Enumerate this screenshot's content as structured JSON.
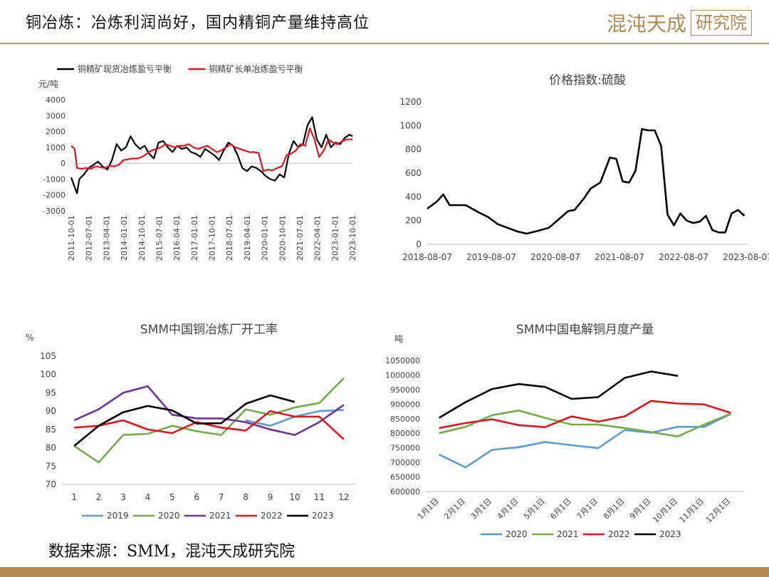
{
  "header": {
    "title": "铜冶炼：冶炼利润尚好，国内精铜产量维持高位",
    "logo_text": "混沌天成",
    "logo_box": "研究院"
  },
  "footer": {
    "source": "数据来源：SMM，混沌天成研究院"
  },
  "colors": {
    "gold": "#b08a52"
  },
  "chart_data": [
    {
      "type": "line",
      "title": "",
      "ylabel": "元/吨",
      "ylim": [
        -3000,
        4000
      ],
      "yticks": [
        "4000",
        "3000",
        "2000",
        "1000",
        "0",
        "-1000",
        "-2000",
        "-3000"
      ],
      "x_range": [
        2011.75,
        2023.83
      ],
      "xtick_labels": [
        "2011-10-01",
        "2012-07-01",
        "2013-04-01",
        "2014-01-01",
        "2014-10-01",
        "2015-07-01",
        "2016-04-01",
        "2017-01-01",
        "2017-10-01",
        "2018-07-01",
        "2019-04-01",
        "2020-01-01",
        "2020-10-01",
        "2021-07-01",
        "2022-04-01",
        "2023-01-01",
        "2023-10-01"
      ],
      "series": [
        {
          "name": "铜精矿现货冶炼盈亏平衡",
          "color": "#000000",
          "x": [
            2011.75,
            2011.9,
            2012.0,
            2012.1,
            2012.3,
            2012.5,
            2012.7,
            2012.9,
            2013.1,
            2013.3,
            2013.5,
            2013.7,
            2013.9,
            2014.1,
            2014.3,
            2014.5,
            2014.7,
            2014.9,
            2015.1,
            2015.3,
            2015.5,
            2015.7,
            2015.9,
            2016.1,
            2016.3,
            2016.5,
            2016.7,
            2016.9,
            2017.1,
            2017.3,
            2017.5,
            2017.7,
            2017.9,
            2018.1,
            2018.3,
            2018.5,
            2018.7,
            2018.9,
            2019.1,
            2019.3,
            2019.5,
            2019.7,
            2019.9,
            2020.1,
            2020.3,
            2020.5,
            2020.7,
            2020.9,
            2021.1,
            2021.3,
            2021.5,
            2021.7,
            2021.9,
            2022.1,
            2022.3,
            2022.5,
            2022.7,
            2022.9,
            2023.1,
            2023.3,
            2023.5,
            2023.7,
            2023.83
          ],
          "y": [
            -900,
            -1500,
            -1900,
            -1000,
            -700,
            -300,
            -100,
            100,
            -200,
            -400,
            200,
            1200,
            800,
            1000,
            1700,
            1200,
            900,
            1100,
            600,
            300,
            1300,
            1400,
            1000,
            700,
            1100,
            900,
            1000,
            700,
            600,
            400,
            900,
            700,
            500,
            200,
            800,
            1300,
            1100,
            500,
            -300,
            -500,
            -200,
            -300,
            -500,
            -800,
            -1000,
            -1100,
            -700,
            -900,
            600,
            1400,
            1000,
            1200,
            2400,
            2900,
            1500,
            1000,
            1800,
            1000,
            1300,
            1200,
            1600,
            1800,
            1700
          ]
        },
        {
          "name": "铜精矿长单冶炼盈亏平衡",
          "color": "#e0141d",
          "x": [
            2011.75,
            2011.9,
            2012.0,
            2012.2,
            2012.4,
            2012.6,
            2012.8,
            2013.0,
            2013.2,
            2013.4,
            2013.6,
            2013.8,
            2014.0,
            2014.2,
            2014.4,
            2014.6,
            2014.8,
            2015.0,
            2015.2,
            2015.4,
            2015.6,
            2015.8,
            2016.0,
            2016.2,
            2016.4,
            2016.6,
            2016.8,
            2017.0,
            2017.2,
            2017.4,
            2017.6,
            2017.8,
            2018.0,
            2018.2,
            2018.4,
            2018.6,
            2018.8,
            2019.0,
            2019.2,
            2019.4,
            2019.6,
            2019.8,
            2020.0,
            2020.2,
            2020.4,
            2020.6,
            2020.8,
            2021.0,
            2021.2,
            2021.4,
            2021.6,
            2021.8,
            2022.0,
            2022.2,
            2022.4,
            2022.6,
            2022.8,
            2023.0,
            2023.2,
            2023.4,
            2023.6,
            2023.83
          ],
          "y": [
            1100,
            900,
            -300,
            -350,
            -300,
            -350,
            -200,
            -250,
            -300,
            -150,
            -200,
            -100,
            200,
            250,
            300,
            300,
            400,
            600,
            800,
            900,
            1000,
            1200,
            1100,
            1000,
            1100,
            1100,
            1200,
            1000,
            900,
            1000,
            1100,
            900,
            700,
            800,
            1000,
            1200,
            1000,
            900,
            800,
            700,
            700,
            650,
            -500,
            -400,
            -450,
            -300,
            -200,
            500,
            600,
            800,
            1200,
            1100,
            2200,
            1500,
            400,
            800,
            1500,
            1300,
            1200,
            1400,
            1500,
            1500
          ]
        }
      ]
    },
    {
      "type": "line",
      "title": "价格指数:硫酸",
      "ylim": [
        0,
        1200
      ],
      "yticks": [
        "1200",
        "1000",
        "800",
        "600",
        "400",
        "200",
        "0"
      ],
      "x_range": [
        2018.6,
        2023.6
      ],
      "xtick_labels": [
        "2018-08-07",
        "2019-08-07",
        "2020-08-07",
        "2021-08-07",
        "2022-08-07",
        "2023-08-07"
      ],
      "series": [
        {
          "name": "",
          "color": "#000000",
          "x": [
            2018.6,
            2018.75,
            2018.85,
            2018.95,
            2019.05,
            2019.2,
            2019.4,
            2019.55,
            2019.7,
            2019.85,
            2020.0,
            2020.15,
            2020.3,
            2020.5,
            2020.65,
            2020.8,
            2020.9,
            2021.05,
            2021.15,
            2021.3,
            2021.45,
            2021.55,
            2021.65,
            2021.75,
            2021.85,
            2021.95,
            2022.05,
            2022.15,
            2022.25,
            2022.35,
            2022.45,
            2022.55,
            2022.6,
            2022.65,
            2022.75,
            2022.85,
            2022.95,
            2023.05,
            2023.15,
            2023.25,
            2023.35,
            2023.45,
            2023.55
          ],
          "y": [
            300,
            360,
            420,
            330,
            330,
            330,
            270,
            230,
            170,
            140,
            110,
            90,
            110,
            140,
            210,
            280,
            290,
            390,
            470,
            520,
            730,
            720,
            530,
            520,
            620,
            970,
            960,
            960,
            830,
            250,
            160,
            260,
            230,
            200,
            180,
            190,
            240,
            120,
            100,
            100,
            260,
            290,
            240
          ]
        }
      ]
    },
    {
      "type": "line",
      "title": "SMM中国铜冶炼厂开工率",
      "ylabel": "%",
      "ylim": [
        70,
        105
      ],
      "yticks": [
        "105",
        "100",
        "95",
        "90",
        "85",
        "80",
        "75",
        "70"
      ],
      "categories": [
        "1",
        "2",
        "3",
        "4",
        "5",
        "6",
        "7",
        "8",
        "9",
        "10",
        "11",
        "12"
      ],
      "series": [
        {
          "name": "2019",
          "color": "#5b9bd5",
          "values": [
            null,
            null,
            null,
            null,
            null,
            null,
            null,
            87.5,
            86.0,
            88.5,
            90.0,
            90.3
          ]
        },
        {
          "name": "2020",
          "color": "#70ad47",
          "values": [
            80.5,
            76.0,
            83.5,
            83.8,
            86.0,
            84.5,
            83.5,
            90.5,
            89.0,
            91.0,
            92.2,
            99.0
          ]
        },
        {
          "name": "2021",
          "color": "#7030a0",
          "values": [
            87.5,
            90.5,
            95.0,
            96.8,
            89.0,
            88.0,
            88.0,
            87.0,
            85.0,
            83.5,
            87.0,
            91.7
          ]
        },
        {
          "name": "2022",
          "color": "#e0141d",
          "values": [
            85.5,
            86.0,
            87.5,
            85.0,
            84.0,
            87.0,
            85.5,
            84.7,
            90.0,
            88.5,
            88.5,
            82.3
          ]
        },
        {
          "name": "2023",
          "color": "#000000",
          "values": [
            80.5,
            86.0,
            89.7,
            91.4,
            90.2,
            86.6,
            86.7,
            92.0,
            94.3,
            92.5,
            null,
            null
          ]
        }
      ]
    },
    {
      "type": "line",
      "title": "SMM中国电解铜月度产量",
      "ylabel": "吨",
      "ylim": [
        600000,
        1050000
      ],
      "yticks": [
        "1050000",
        "1000000",
        "950000",
        "900000",
        "850000",
        "800000",
        "750000",
        "700000",
        "650000",
        "600000"
      ],
      "categories": [
        "1月1日",
        "2月1日",
        "3月1日",
        "4月1日",
        "5月1日",
        "6月1日",
        "7月1日",
        "8月1日",
        "9月1日",
        "10月1日",
        "11月1日",
        "12月1日"
      ],
      "series": [
        {
          "name": "2020",
          "color": "#5b9bd5",
          "values": [
            727000,
            683000,
            743000,
            752000,
            770000,
            759000,
            749000,
            811000,
            802000,
            822000,
            822000,
            866000
          ]
        },
        {
          "name": "2021",
          "color": "#70ad47",
          "values": [
            800000,
            822000,
            862000,
            878000,
            853000,
            830000,
            830000,
            818000,
            804000,
            789000,
            830000,
            867000
          ]
        },
        {
          "name": "2022",
          "color": "#e0141d",
          "values": [
            818000,
            835000,
            848000,
            828000,
            821000,
            858000,
            840000,
            858000,
            911000,
            902000,
            899000,
            870000
          ]
        },
        {
          "name": "2023",
          "color": "#000000",
          "values": [
            853000,
            907000,
            952000,
            969000,
            959000,
            918000,
            924000,
            990000,
            1012000,
            997000,
            null,
            null
          ]
        }
      ]
    }
  ]
}
